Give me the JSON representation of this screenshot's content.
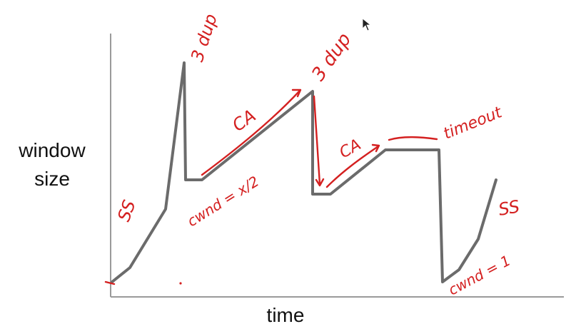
{
  "axes": {
    "ylabel_line1": "window",
    "ylabel_line2": "size",
    "xlabel": "time"
  },
  "annotations": {
    "ss_left": "SS",
    "triple_dup_1": "3 dup",
    "ca_first": "CA",
    "cwnd_half": "cwnd = x/2",
    "triple_dup_2": "3 dup",
    "ca_second": "CA",
    "timeout": "timeout",
    "ss_right": "SS",
    "cwnd_one": "cwnd = 1"
  },
  "colors": {
    "trace": "#6b6b6b",
    "axis": "#9a9a9a",
    "ink": "#d42020"
  },
  "icons": {
    "cursor": "mouse-pointer-icon"
  }
}
